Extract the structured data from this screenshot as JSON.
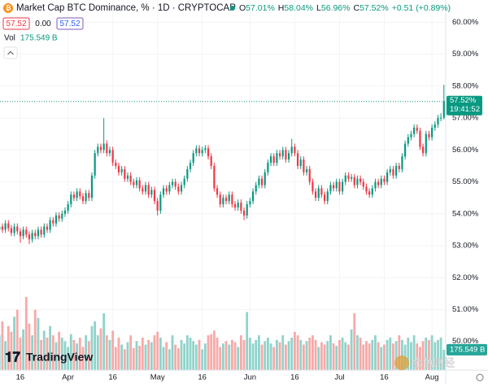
{
  "chart_data": {
    "type": "candlestick",
    "title": "Market Cap BTC Dominance, % · 1D · CRYPTOCAP",
    "ohlc_legend": [
      {
        "label": "O",
        "value": "57.01%"
      },
      {
        "label": "H",
        "value": "58.04%"
      },
      {
        "label": "L",
        "value": "56.96%"
      },
      {
        "label": "C",
        "value": "57.52%"
      }
    ],
    "change": "+0.51 (+0.89%)",
    "order_row": [
      "57.52",
      "0.00",
      "57.52"
    ],
    "volume_label": "Vol",
    "volume_value_label": "175.549 B",
    "last_price_label": "57.52%",
    "countdown": "19:41:52",
    "branding": "TradingView",
    "watermark": "金色财经",
    "up_color": "#089981",
    "down_color": "#f23645",
    "volume_up_color": "#8fd3ca",
    "volume_down_color": "#f7a9a7",
    "open": [
      53.5,
      53.6,
      53.5,
      53.7,
      53.55,
      53.4,
      53.6,
      53.45,
      53.3,
      53.5,
      53.35,
      53.2,
      53.4,
      53.3,
      53.5,
      53.35,
      53.6,
      53.5,
      53.8,
      53.7,
      53.95,
      53.85,
      54.0,
      54.1,
      54.3,
      54.6,
      54.5,
      54.7,
      54.55,
      54.4,
      54.65,
      54.5,
      55.2,
      55.9,
      56.1,
      56.0,
      56.2,
      55.9,
      56.0,
      55.6,
      55.5,
      55.3,
      55.4,
      55.1,
      55.2,
      55.0,
      54.9,
      55.05,
      54.8,
      54.7,
      54.9,
      54.6,
      54.75,
      54.4,
      54.1,
      54.6,
      54.8,
      54.7,
      54.9,
      55.0,
      54.85,
      54.7,
      54.9,
      55.1,
      55.4,
      55.6,
      55.9,
      56.05,
      55.9,
      56.0,
      56.05,
      55.8,
      55.5,
      54.8,
      54.6,
      54.3,
      54.5,
      54.4,
      54.6,
      54.3,
      54.2,
      54.35,
      54.1,
      53.95,
      54.3,
      54.4,
      54.7,
      54.9,
      55.1,
      54.9,
      55.3,
      55.6,
      55.8,
      55.6,
      55.9,
      55.8,
      56.0,
      55.7,
      55.9,
      56.1,
      55.9,
      55.5,
      55.7,
      55.3,
      55.4,
      55.0,
      54.7,
      54.5,
      54.8,
      54.6,
      54.4,
      54.7,
      54.9,
      54.8,
      55.0,
      54.7,
      55.0,
      55.2,
      55.1,
      55.15,
      54.9,
      55.1,
      55.0,
      54.85,
      54.7,
      54.6,
      54.8,
      55.0,
      54.9,
      55.1,
      55.0,
      55.3,
      55.4,
      55.2,
      55.5,
      55.4,
      55.8,
      56.2,
      56.4,
      56.5,
      56.7,
      56.6,
      56.1,
      55.9,
      56.5,
      56.4,
      56.7,
      56.8,
      57.0,
      57.01
    ],
    "high": [
      53.7,
      53.7,
      53.8,
      53.8,
      53.65,
      53.7,
      53.7,
      53.55,
      53.6,
      53.6,
      53.45,
      53.5,
      53.5,
      53.6,
      53.6,
      53.7,
      53.7,
      53.9,
      53.9,
      54.05,
      54.05,
      54.1,
      54.2,
      54.4,
      54.7,
      54.7,
      54.8,
      54.8,
      54.65,
      54.75,
      54.75,
      55.3,
      56.0,
      56.2,
      56.2,
      57.0,
      56.3,
      56.1,
      56.1,
      55.7,
      55.6,
      55.5,
      55.5,
      55.3,
      55.3,
      55.1,
      55.15,
      55.15,
      54.9,
      55.0,
      55.0,
      54.85,
      54.85,
      54.5,
      54.7,
      54.9,
      54.9,
      55.0,
      55.1,
      55.1,
      54.95,
      55.0,
      55.2,
      55.5,
      55.7,
      56.0,
      56.15,
      56.15,
      56.1,
      56.15,
      56.15,
      55.9,
      55.6,
      54.9,
      54.7,
      54.6,
      54.6,
      54.7,
      54.7,
      54.4,
      54.45,
      54.45,
      54.2,
      54.4,
      54.5,
      54.8,
      55.0,
      55.2,
      55.2,
      55.4,
      55.7,
      55.9,
      55.9,
      56.0,
      56.0,
      56.1,
      56.1,
      56.0,
      56.35,
      56.2,
      56.0,
      55.8,
      55.8,
      55.5,
      55.5,
      55.1,
      54.8,
      54.9,
      54.9,
      54.7,
      54.8,
      55.0,
      55.0,
      55.1,
      55.1,
      55.1,
      55.3,
      55.3,
      55.25,
      55.25,
      55.2,
      55.2,
      55.1,
      54.95,
      54.8,
      54.9,
      55.1,
      55.1,
      55.2,
      55.2,
      55.4,
      55.5,
      55.5,
      55.6,
      55.6,
      55.9,
      56.3,
      56.5,
      56.6,
      56.8,
      56.8,
      56.7,
      56.2,
      56.6,
      56.6,
      56.8,
      56.9,
      57.1,
      57.15,
      58.04
    ],
    "low": [
      53.4,
      53.4,
      53.4,
      53.45,
      53.3,
      53.3,
      53.35,
      53.1,
      53.2,
      53.25,
      53.05,
      53.1,
      53.2,
      53.2,
      53.25,
      53.25,
      53.4,
      53.4,
      53.6,
      53.6,
      53.75,
      53.75,
      53.9,
      54.0,
      54.2,
      54.4,
      54.4,
      54.45,
      54.3,
      54.3,
      54.4,
      54.4,
      55.1,
      55.8,
      55.9,
      55.9,
      55.8,
      55.8,
      55.5,
      55.4,
      55.2,
      55.2,
      55.0,
      55.0,
      54.9,
      54.8,
      54.8,
      54.7,
      54.6,
      54.6,
      54.5,
      54.5,
      54.3,
      53.95,
      54.0,
      54.5,
      54.6,
      54.6,
      54.8,
      54.75,
      54.6,
      54.6,
      54.8,
      55.0,
      55.3,
      55.5,
      55.8,
      55.8,
      55.8,
      55.9,
      55.7,
      55.4,
      54.7,
      54.5,
      54.2,
      54.2,
      54.3,
      54.3,
      54.2,
      54.1,
      54.1,
      54.0,
      53.8,
      53.85,
      54.2,
      54.3,
      54.6,
      54.8,
      54.8,
      54.8,
      55.2,
      55.5,
      55.5,
      55.5,
      55.7,
      55.7,
      55.6,
      55.6,
      55.8,
      55.8,
      55.4,
      55.4,
      55.2,
      55.2,
      54.9,
      54.6,
      54.4,
      54.4,
      54.5,
      54.3,
      54.3,
      54.6,
      54.7,
      54.7,
      54.6,
      54.6,
      54.9,
      55.0,
      55.0,
      54.8,
      54.8,
      54.9,
      54.75,
      54.6,
      54.5,
      54.5,
      54.7,
      54.8,
      54.8,
      54.9,
      54.9,
      55.2,
      55.1,
      55.1,
      55.3,
      55.3,
      55.7,
      56.1,
      56.3,
      56.4,
      56.5,
      56.0,
      55.8,
      55.8,
      56.3,
      56.3,
      56.6,
      56.7,
      56.9,
      56.96
    ],
    "close": [
      53.6,
      53.5,
      53.7,
      53.55,
      53.4,
      53.6,
      53.45,
      53.3,
      53.5,
      53.35,
      53.2,
      53.4,
      53.3,
      53.5,
      53.35,
      53.6,
      53.5,
      53.8,
      53.7,
      53.95,
      53.85,
      54.0,
      54.1,
      54.3,
      54.6,
      54.5,
      54.7,
      54.55,
      54.4,
      54.65,
      54.5,
      55.2,
      55.9,
      56.1,
      56.0,
      56.2,
      55.9,
      56.0,
      55.6,
      55.5,
      55.3,
      55.4,
      55.1,
      55.2,
      55.0,
      54.9,
      55.05,
      54.8,
      54.7,
      54.9,
      54.6,
      54.75,
      54.4,
      54.1,
      54.6,
      54.8,
      54.7,
      54.9,
      55.0,
      54.85,
      54.7,
      54.9,
      55.1,
      55.4,
      55.6,
      55.9,
      56.05,
      55.9,
      56.0,
      56.05,
      55.8,
      55.5,
      54.8,
      54.6,
      54.3,
      54.5,
      54.4,
      54.6,
      54.3,
      54.2,
      54.35,
      54.1,
      53.95,
      54.3,
      54.4,
      54.7,
      54.9,
      55.1,
      54.9,
      55.3,
      55.6,
      55.8,
      55.6,
      55.9,
      55.8,
      56.0,
      55.7,
      55.9,
      56.1,
      55.9,
      55.5,
      55.7,
      55.3,
      55.4,
      55.0,
      54.7,
      54.5,
      54.8,
      54.6,
      54.4,
      54.7,
      54.9,
      54.8,
      55.0,
      54.7,
      55.0,
      55.2,
      55.1,
      55.15,
      54.9,
      55.1,
      55.0,
      54.85,
      54.7,
      54.6,
      54.8,
      55.0,
      54.9,
      55.1,
      55.0,
      55.3,
      55.4,
      55.2,
      55.5,
      55.4,
      55.8,
      56.2,
      56.4,
      56.5,
      56.7,
      56.6,
      56.1,
      55.9,
      56.5,
      56.4,
      56.7,
      56.8,
      57.0,
      57.01,
      57.52
    ],
    "volume": [
      300,
      420,
      250,
      380,
      330,
      460,
      520,
      280,
      350,
      630,
      400,
      300,
      520,
      450,
      260,
      340,
      280,
      380,
      300,
      240,
      330,
      280,
      250,
      200,
      310,
      260,
      230,
      280,
      200,
      300,
      250,
      380,
      420,
      300,
      360,
      490,
      300,
      260,
      340,
      200,
      280,
      220,
      180,
      240,
      300,
      190,
      250,
      210,
      280,
      220,
      260,
      240,
      300,
      330,
      280,
      200,
      240,
      180,
      300,
      220,
      190,
      260,
      230,
      300,
      280,
      250,
      220,
      260,
      180,
      230,
      300,
      310,
      340,
      280,
      200,
      230,
      250,
      220,
      260,
      240,
      200,
      300,
      260,
      500,
      280,
      230,
      260,
      300,
      220,
      250,
      280,
      230,
      200,
      260,
      240,
      300,
      220,
      250,
      280,
      330,
      300,
      260,
      220,
      250,
      280,
      300,
      260,
      200,
      240,
      220,
      250,
      300,
      230,
      210,
      260,
      280,
      240,
      220,
      350,
      490,
      300,
      280,
      220,
      250,
      230,
      260,
      300,
      240,
      200,
      220,
      260,
      280,
      230,
      250,
      300,
      260,
      220,
      280,
      240,
      300,
      230,
      200,
      250,
      280,
      260,
      300,
      240,
      260,
      280,
      175.549
    ],
    "xlim": [
      0.2,
      149.6
    ],
    "xticks": [
      {
        "value": 7,
        "label": "16"
      },
      {
        "value": 23,
        "label": "Apr"
      },
      {
        "value": 38,
        "label": "16"
      },
      {
        "value": 53,
        "label": "May"
      },
      {
        "value": 68,
        "label": "16"
      },
      {
        "value": 84,
        "label": "Jun"
      },
      {
        "value": 99,
        "label": "16"
      },
      {
        "value": 114,
        "label": "Jul"
      },
      {
        "value": 129,
        "label": "16"
      },
      {
        "value": 145,
        "label": "Aug"
      }
    ],
    "ylim": [
      49.1,
      60.7
    ],
    "yticks": [
      {
        "value": 50,
        "label": "50.00%"
      },
      {
        "value": 51,
        "label": "51.00%"
      },
      {
        "value": 52,
        "label": "52.00%"
      },
      {
        "value": 53,
        "label": "53.00%"
      },
      {
        "value": 54,
        "label": "54.00%"
      },
      {
        "value": 55,
        "label": "55.00%"
      },
      {
        "value": 56,
        "label": "56.00%"
      },
      {
        "value": 57,
        "label": "57.00%"
      },
      {
        "value": 58,
        "label": "58.00%"
      },
      {
        "value": 59,
        "label": "59.00%"
      },
      {
        "value": 60,
        "label": "60.00%"
      }
    ],
    "volume_ylim": [
      0,
      700
    ]
  }
}
